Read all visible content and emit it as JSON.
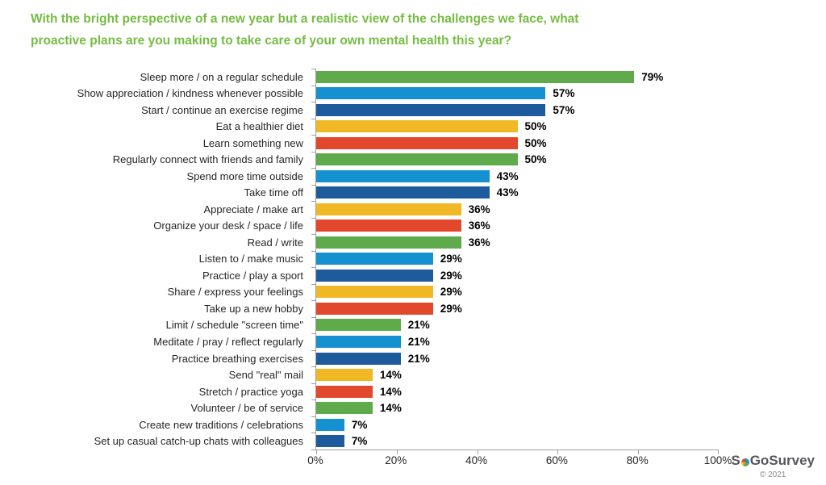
{
  "title": {
    "lines": [
      "With the bright perspective of a new year but a realistic view of the challenges we face, what",
      "proactive plans are you making to take care of your own mental health this year?"
    ],
    "color": "#76BC43"
  },
  "chart_data": {
    "type": "bar",
    "orientation": "horizontal",
    "title": "With the bright perspective of a new year but a realistic view of the challenges we face, what proactive plans are you making to take care of your own mental health this year?",
    "categories": [
      "Sleep more / on a regular schedule",
      "Show appreciation / kindness whenever possible",
      "Start / continue an exercise regime",
      "Eat a healthier diet",
      "Learn something new",
      "Regularly connect with friends and family",
      "Spend more time outside",
      "Take time off",
      "Appreciate / make art",
      "Organize your desk / space / life",
      "Read / write",
      "Listen to / make music",
      "Practice / play a sport",
      "Share / express your feelings",
      "Take up a new hobby",
      "Limit / schedule \"screen time\"",
      "Meditate / pray / reflect regularly",
      "Practice breathing exercises",
      "Send \"real\" mail",
      "Stretch / practice yoga",
      "Volunteer / be of service",
      "Create new traditions / celebrations",
      "Set up casual catch-up chats with colleagues"
    ],
    "values": [
      79,
      57,
      57,
      50,
      50,
      50,
      43,
      43,
      36,
      36,
      36,
      29,
      29,
      29,
      29,
      21,
      21,
      21,
      14,
      14,
      14,
      7,
      7
    ],
    "value_suffix": "%",
    "palette": [
      "#5FAB4B",
      "#1590D0",
      "#1E5B9C",
      "#F0B824",
      "#E2492C"
    ],
    "xticks": [
      "0%",
      "20%",
      "40%",
      "60%",
      "80%",
      "100%"
    ],
    "xlim": [
      0,
      100
    ],
    "grid": false,
    "legend": false
  },
  "footer": {
    "logo_prefix": "S",
    "logo_suffix": "GoSurvey",
    "copyright": "© 2021"
  }
}
